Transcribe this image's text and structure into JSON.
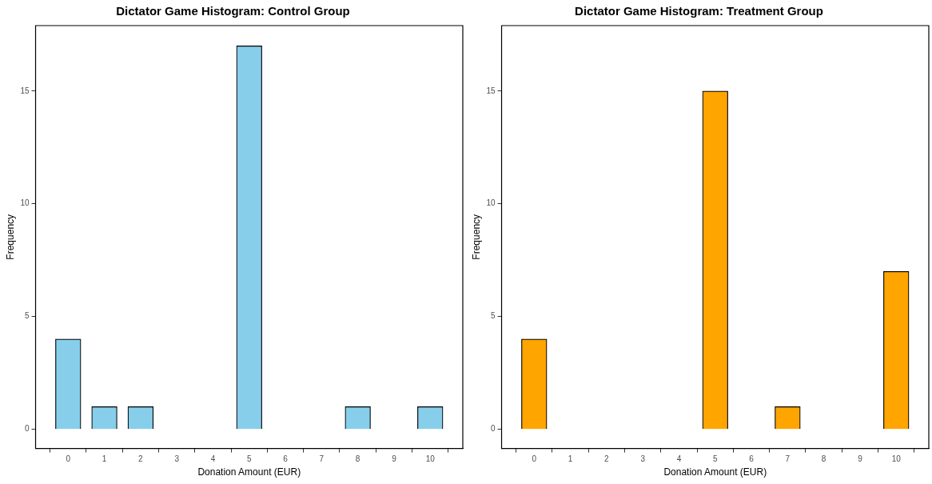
{
  "chart_data": [
    {
      "type": "bar",
      "title": "Dictator Game Histogram: Control Group",
      "xlabel": "Donation Amount (EUR)",
      "ylabel": "Frequency",
      "x": [
        0,
        1,
        2,
        5,
        8,
        10
      ],
      "values": [
        4,
        1,
        1,
        17,
        1,
        1
      ],
      "color": "#87ceeb",
      "xlim": [
        -0.9,
        10.9
      ],
      "xticks": [
        0,
        1,
        2,
        3,
        4,
        5,
        6,
        7,
        8,
        9,
        10
      ],
      "ylim": [
        -0.85,
        17.9
      ],
      "yticks": [
        0,
        5,
        10,
        15
      ],
      "grid": false,
      "legend": false
    },
    {
      "type": "bar",
      "title": "Dictator Game Histogram: Treatment Group",
      "xlabel": "Donation Amount (EUR)",
      "ylabel": "Frequency",
      "x": [
        0,
        5,
        7,
        10
      ],
      "values": [
        4,
        15,
        1,
        7
      ],
      "color": "#ffa500",
      "xlim": [
        -0.9,
        10.9
      ],
      "xticks": [
        0,
        1,
        2,
        3,
        4,
        5,
        6,
        7,
        8,
        9,
        10
      ],
      "ylim": [
        -0.85,
        17.9
      ],
      "yticks": [
        0,
        5,
        10,
        15
      ],
      "grid": false,
      "legend": false
    }
  ]
}
